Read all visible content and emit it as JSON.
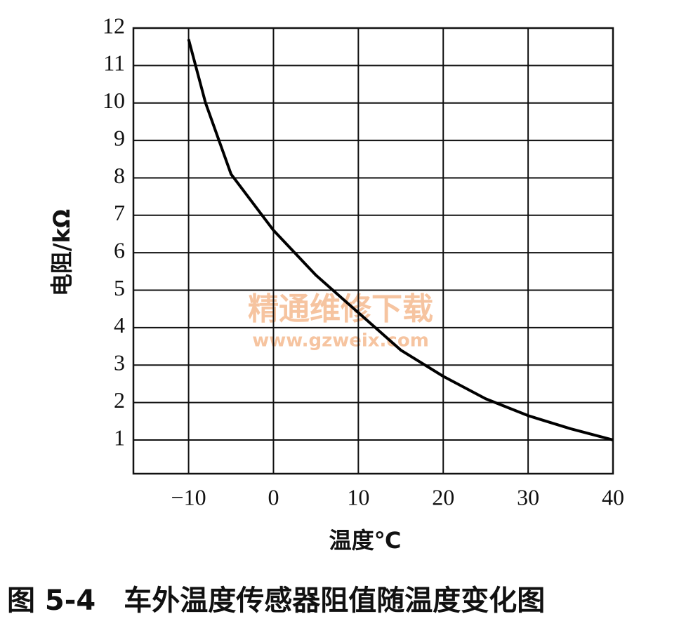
{
  "chart_data": {
    "type": "line",
    "title": "图 5-4　车外温度传感器阻值随温度变化图",
    "x_label": "温度℃",
    "y_label": "电阻/kΩ",
    "watermark": "精通维修下载",
    "watermark_url": "www.gzweix.com",
    "x": [
      -10,
      -8,
      -5,
      0,
      5,
      10,
      15,
      20,
      25,
      30,
      35,
      40
    ],
    "series": [
      {
        "color": "#000000",
        "values": [
          11.7,
          10,
          8.1,
          6.6,
          5.4,
          4.4,
          3.4,
          2.7,
          2.1,
          1.65,
          1.3,
          1.0
        ]
      }
    ],
    "xlim": [
      -16.5,
      40
    ],
    "ylim": [
      0.1,
      12
    ],
    "xticks": [
      {
        "value": -10,
        "label": "−10"
      },
      0,
      10,
      20,
      30,
      40
    ],
    "yticks": [
      1,
      2,
      3,
      4,
      5,
      6,
      7,
      8,
      9,
      10,
      11,
      12
    ],
    "grid": true
  }
}
